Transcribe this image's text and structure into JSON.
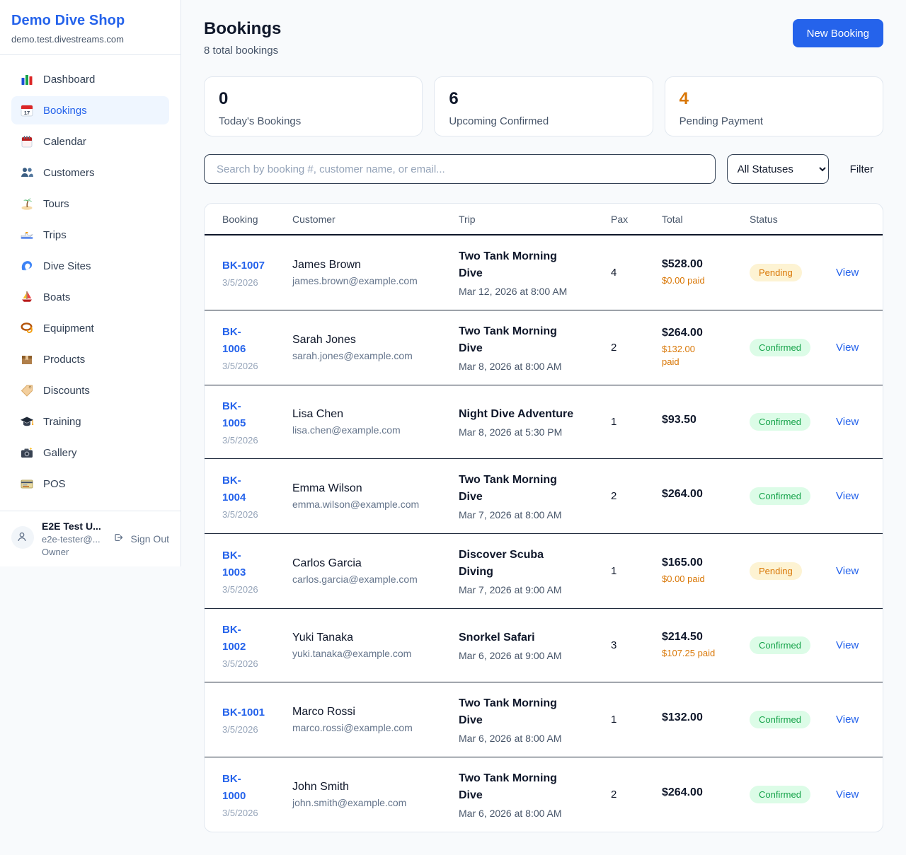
{
  "sidebar": {
    "brand": {
      "name": "Demo Dive Shop",
      "domain": "demo.test.divestreams.com"
    },
    "nav": [
      {
        "label": "Dashboard",
        "icon": "bar-chart",
        "active": false
      },
      {
        "label": "Bookings",
        "icon": "calendar-date",
        "active": true
      },
      {
        "label": "Calendar",
        "icon": "calendar",
        "active": false
      },
      {
        "label": "Customers",
        "icon": "users",
        "active": false
      },
      {
        "label": "Tours",
        "icon": "palm-island",
        "active": false
      },
      {
        "label": "Trips",
        "icon": "speedboat",
        "active": false
      },
      {
        "label": "Dive Sites",
        "icon": "wave",
        "active": false
      },
      {
        "label": "Boats",
        "icon": "sailboat",
        "active": false
      },
      {
        "label": "Equipment",
        "icon": "diving-mask",
        "active": false
      },
      {
        "label": "Products",
        "icon": "package-box",
        "active": false
      },
      {
        "label": "Discounts",
        "icon": "price-tag",
        "active": false
      },
      {
        "label": "Training",
        "icon": "graduation-cap",
        "active": false
      },
      {
        "label": "Gallery",
        "icon": "camera",
        "active": false
      },
      {
        "label": "POS",
        "icon": "credit-card",
        "active": false
      }
    ],
    "user": {
      "name": "E2E Test U...",
      "email": "e2e-tester@...",
      "role": "Owner",
      "sign_out_label": "Sign Out"
    }
  },
  "header": {
    "title": "Bookings",
    "subtitle": "8 total bookings",
    "new_booking_label": "New Booking"
  },
  "stats": [
    {
      "value": "0",
      "label": "Today's Bookings",
      "value_color": "#0f172a"
    },
    {
      "value": "6",
      "label": "Upcoming Confirmed",
      "value_color": "#0f172a"
    },
    {
      "value": "4",
      "label": "Pending Payment",
      "value_color": "#d97706"
    }
  ],
  "filters": {
    "search_placeholder": "Search by booking #, customer name, or email...",
    "status_selected": "All Statuses",
    "filter_label": "Filter"
  },
  "table": {
    "columns": [
      "Booking",
      "Customer",
      "Trip",
      "Pax",
      "Total",
      "Status"
    ],
    "rows": [
      {
        "id": "BK-1007",
        "date": "3/5/2026",
        "customer": "James Brown",
        "email": "james.brown@example.com",
        "trip": "Two Tank Morning Dive",
        "trip_date": "Mar 12, 2026 at 8:00 AM",
        "pax": "4",
        "total": "$528.00",
        "paid": "$0.00 paid",
        "status": "Pending",
        "action": "View"
      },
      {
        "id": "BK-\n1006",
        "date": "3/5/2026",
        "customer": "Sarah Jones",
        "email": "sarah.jones@example.com",
        "trip": "Two Tank Morning Dive",
        "trip_date": "Mar 8, 2026 at 8:00 AM",
        "pax": "2",
        "total": "$264.00",
        "paid": "$132.00\npaid",
        "status": "Confirmed",
        "action": "View"
      },
      {
        "id": "BK-\n1005",
        "date": "3/5/2026",
        "customer": "Lisa Chen",
        "email": "lisa.chen@example.com",
        "trip": "Night Dive Adventure",
        "trip_date": "Mar 8, 2026 at 5:30 PM",
        "pax": "1",
        "total": "$93.50",
        "paid": "",
        "status": "Confirmed",
        "action": "View"
      },
      {
        "id": "BK-\n1004",
        "date": "3/5/2026",
        "customer": "Emma Wilson",
        "email": "emma.wilson@example.com",
        "trip": "Two Tank Morning Dive",
        "trip_date": "Mar 7, 2026 at 8:00 AM",
        "pax": "2",
        "total": "$264.00",
        "paid": "",
        "status": "Confirmed",
        "action": "View"
      },
      {
        "id": "BK-\n1003",
        "date": "3/5/2026",
        "customer": "Carlos Garcia",
        "email": "carlos.garcia@example.com",
        "trip": "Discover Scuba Diving",
        "trip_date": "Mar 7, 2026 at 9:00 AM",
        "pax": "1",
        "total": "$165.00",
        "paid": "$0.00 paid",
        "status": "Pending",
        "action": "View"
      },
      {
        "id": "BK-\n1002",
        "date": "3/5/2026",
        "customer": "Yuki Tanaka",
        "email": "yuki.tanaka@example.com",
        "trip": "Snorkel Safari",
        "trip_date": "Mar 6, 2026 at 9:00 AM",
        "pax": "3",
        "total": "$214.50",
        "paid": "$107.25 paid",
        "status": "Confirmed",
        "action": "View"
      },
      {
        "id": "BK-1001",
        "date": "3/5/2026",
        "customer": "Marco Rossi",
        "email": "marco.rossi@example.com",
        "trip": "Two Tank Morning Dive",
        "trip_date": "Mar 6, 2026 at 8:00 AM",
        "pax": "1",
        "total": "$132.00",
        "paid": "",
        "status": "Confirmed",
        "action": "View"
      },
      {
        "id": "BK-\n1000",
        "date": "3/5/2026",
        "customer": "John Smith",
        "email": "john.smith@example.com",
        "trip": "Two Tank Morning Dive",
        "trip_date": "Mar 6, 2026 at 8:00 AM",
        "pax": "2",
        "total": "$264.00",
        "paid": "",
        "status": "Confirmed",
        "action": "View"
      }
    ]
  },
  "colors": {
    "accent_blue": "#2563eb",
    "pending_text": "#d97706",
    "pending_bg": "#fdf3d3",
    "confirmed_text": "#16a34a",
    "confirmed_bg": "#dcfce7",
    "page_bg": "#f8fafc"
  }
}
